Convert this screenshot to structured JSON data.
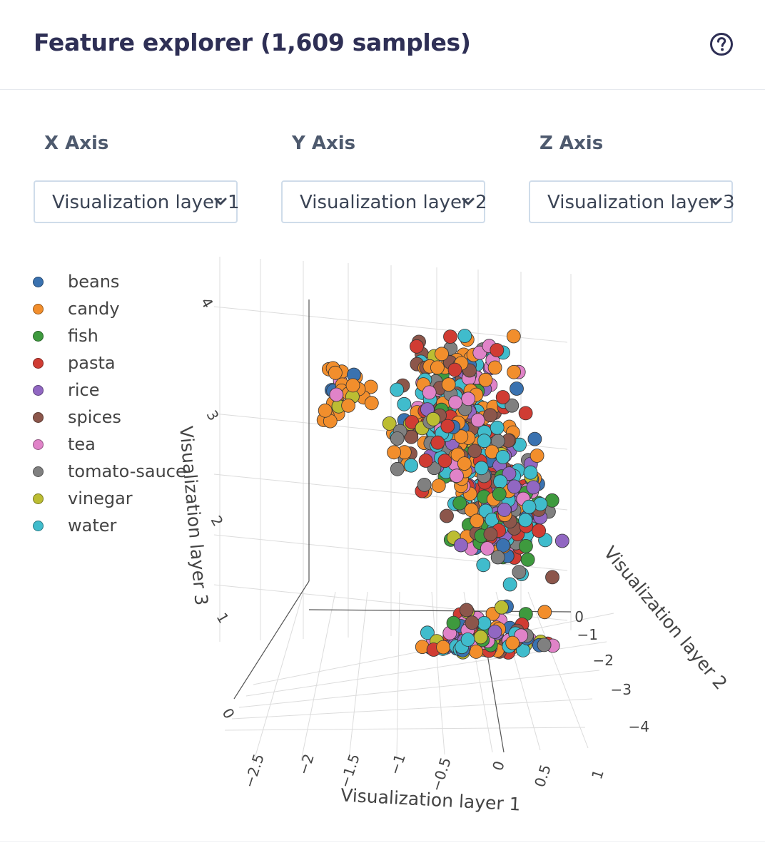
{
  "header": {
    "title": "Feature explorer (1,609 samples)",
    "help_icon": "question-circle-icon"
  },
  "axes_controls": [
    {
      "label": "X Axis",
      "selected": "Visualization layer 1"
    },
    {
      "label": "Y Axis",
      "selected": "Visualization layer 2"
    },
    {
      "label": "Z Axis",
      "selected": "Visualization layer 3"
    }
  ],
  "chart_data": {
    "type": "scatter3d",
    "x_title": "Visualization layer 1",
    "y_title": "Visualization layer 2",
    "z_title": "Visualization layer 3",
    "x_ticks": [
      "−2.5",
      "−2",
      "−1.5",
      "−1",
      "−0.5",
      "0",
      "0.5",
      "1"
    ],
    "y_ticks": [
      "0",
      "−1",
      "−2",
      "−3",
      "−4"
    ],
    "z_ticks": [
      "0",
      "1",
      "2",
      "3",
      "4"
    ],
    "xlim": [
      -2.8,
      1.1
    ],
    "ylim": [
      -4.5,
      0.3
    ],
    "zlim": [
      0,
      4.3
    ],
    "legend_placement": "top-left",
    "series": [
      {
        "name": "beans",
        "color": "#3a72b0"
      },
      {
        "name": "candy",
        "color": "#f28e2c"
      },
      {
        "name": "fish",
        "color": "#3e9a3e"
      },
      {
        "name": "pasta",
        "color": "#d03c33"
      },
      {
        "name": "rice",
        "color": "#9167c2"
      },
      {
        "name": "spices",
        "color": "#8c564b"
      },
      {
        "name": "tea",
        "color": "#e083c8"
      },
      {
        "name": "tomato-sauce",
        "color": "#808080"
      },
      {
        "name": "vinegar",
        "color": "#bcbd32"
      },
      {
        "name": "water",
        "color": "#40bccc"
      }
    ]
  }
}
